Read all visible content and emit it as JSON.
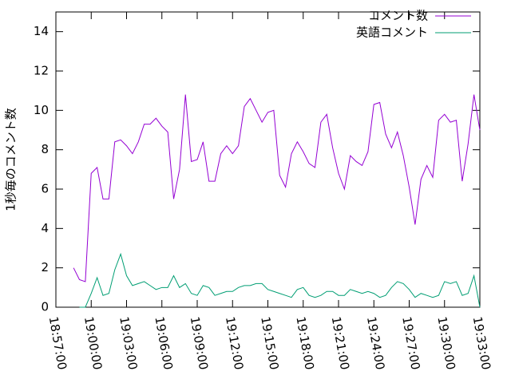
{
  "chart_data": {
    "type": "line",
    "ylabel": "1秒毎のコメント数",
    "x": [
      "18:58:30",
      "18:59:00",
      "18:59:30",
      "19:00:00",
      "19:00:30",
      "19:01:00",
      "19:01:30",
      "19:02:00",
      "19:02:30",
      "19:03:00",
      "19:03:30",
      "19:04:00",
      "19:04:30",
      "19:05:00",
      "19:05:30",
      "19:06:00",
      "19:06:30",
      "19:07:00",
      "19:07:30",
      "19:08:00",
      "19:08:30",
      "19:09:00",
      "19:09:30",
      "19:10:00",
      "19:10:30",
      "19:11:00",
      "19:11:30",
      "19:12:00",
      "19:12:30",
      "19:13:00",
      "19:13:30",
      "19:14:00",
      "19:14:30",
      "19:15:00",
      "19:15:30",
      "19:16:00",
      "19:16:30",
      "19:17:00",
      "19:17:30",
      "19:18:00",
      "19:18:30",
      "19:19:00",
      "19:19:30",
      "19:20:00",
      "19:20:30",
      "19:21:00",
      "19:21:30",
      "19:22:00",
      "19:22:30",
      "19:23:00",
      "19:23:30",
      "19:24:00",
      "19:24:30",
      "19:25:00",
      "19:25:30",
      "19:26:00",
      "19:26:30",
      "19:27:00",
      "19:27:30",
      "19:28:00",
      "19:28:30",
      "19:29:00",
      "19:29:30",
      "19:30:00",
      "19:30:30",
      "19:31:00",
      "19:31:30",
      "19:32:00",
      "19:32:30",
      "19:33:00"
    ],
    "series": [
      {
        "name": "コメント数",
        "color": "#9400d3",
        "values": [
          2.0,
          1.4,
          1.3,
          6.8,
          7.1,
          5.5,
          5.5,
          8.4,
          8.5,
          8.2,
          7.8,
          8.4,
          9.3,
          9.3,
          9.6,
          9.2,
          8.9,
          5.5,
          7.0,
          10.8,
          7.4,
          7.5,
          8.4,
          6.4,
          6.4,
          7.8,
          8.2,
          7.8,
          8.2,
          10.2,
          10.6,
          10.0,
          9.4,
          9.9,
          10.0,
          6.7,
          6.1,
          7.8,
          8.4,
          7.9,
          7.3,
          7.1,
          9.4,
          9.8,
          8.1,
          6.8,
          6.0,
          7.7,
          7.4,
          7.2,
          7.9,
          10.3,
          10.4,
          8.8,
          8.1,
          8.9,
          7.7,
          6.1,
          4.2,
          6.5,
          7.2,
          6.6,
          9.5,
          9.8,
          9.4,
          9.5,
          6.4,
          8.3,
          10.8,
          9.0
        ]
      },
      {
        "name": "英語コメント",
        "color": "#009e73",
        "values": [
          null,
          0,
          0,
          0.7,
          1.5,
          0.6,
          0.7,
          1.9,
          2.7,
          1.6,
          1.1,
          1.2,
          1.3,
          1.1,
          0.9,
          1.0,
          1.0,
          1.6,
          1.0,
          1.2,
          0.7,
          0.6,
          1.1,
          1.0,
          0.6,
          0.7,
          0.8,
          0.8,
          1.0,
          1.1,
          1.1,
          1.2,
          1.2,
          0.9,
          0.8,
          0.7,
          0.6,
          0.5,
          0.9,
          1.0,
          0.6,
          0.5,
          0.6,
          0.8,
          0.8,
          0.6,
          0.6,
          0.9,
          0.8,
          0.7,
          0.8,
          0.7,
          0.5,
          0.6,
          1.0,
          1.3,
          1.2,
          0.9,
          0.5,
          0.7,
          0.6,
          0.5,
          0.6,
          1.3,
          1.2,
          1.3,
          0.6,
          0.7,
          1.6,
          0
        ]
      }
    ],
    "xlim": [
      "18:57:00",
      "19:33:00"
    ],
    "xticks": [
      "18:57:00",
      "19:00:00",
      "19:03:00",
      "19:06:00",
      "19:09:00",
      "19:12:00",
      "19:15:00",
      "19:18:00",
      "19:21:00",
      "19:24:00",
      "19:27:00",
      "19:30:00",
      "19:33:00"
    ],
    "ylim": [
      0,
      15
    ],
    "yticks": [
      0,
      2,
      4,
      6,
      8,
      10,
      12,
      14
    ],
    "legend": "top-right"
  }
}
